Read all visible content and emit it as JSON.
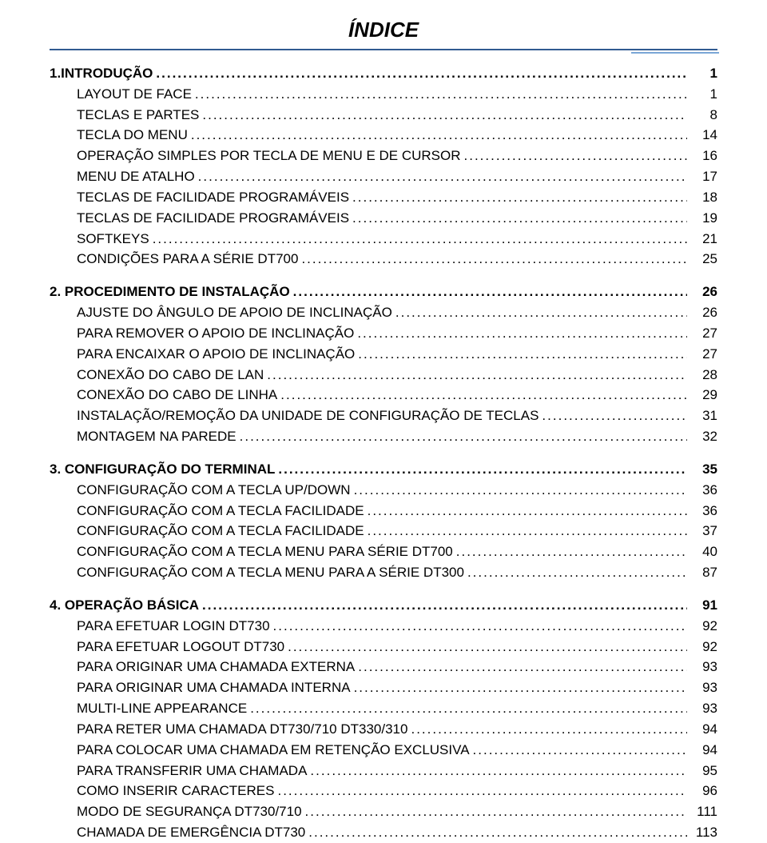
{
  "page": {
    "title": "ÍNDICE",
    "colors": {
      "rule_primary": "#315b91",
      "rule_accent": "#7aa6d6",
      "text": "#000000",
      "background": "#ffffff"
    },
    "typography": {
      "title_fontsize": 26,
      "title_weight": "bold",
      "title_style": "italic",
      "body_fontsize": 17,
      "line_height": 1.52,
      "font_family": "Arial"
    }
  },
  "items": [
    {
      "level": 1,
      "label": "1.INTRODUÇÃO",
      "page": "1"
    },
    {
      "level": 2,
      "label": "LAYOUT DE FACE",
      "page": "1"
    },
    {
      "level": 2,
      "label": "TECLAS E PARTES",
      "page": "8"
    },
    {
      "level": 2,
      "label": "TECLA DO MENU",
      "page": "14"
    },
    {
      "level": 2,
      "label": "OPERAÇÃO SIMPLES POR TECLA DE MENU E  DE  CURSOR",
      "page": "16"
    },
    {
      "level": 2,
      "label": "MENU DE ATALHO",
      "page": "17"
    },
    {
      "level": 2,
      "label": "TECLAS DE FACILIDADE PROGRAMÁVEIS",
      "page": "18"
    },
    {
      "level": 2,
      "label": "TECLAS DE FACILIDADE PROGRAMÁVEIS",
      "page": "19"
    },
    {
      "level": 2,
      "label": "SOFTKEYS",
      "page": "21"
    },
    {
      "level": 2,
      "label": "CONDIÇÕES PARA A SÉRIE DT700",
      "page": "25"
    },
    {
      "gap": true
    },
    {
      "level": 1,
      "label": "2. PROCEDIMENTO DE INSTALAÇÃO",
      "page": "26"
    },
    {
      "level": 2,
      "label": "AJUSTE DO ÂNGULO DE APOIO DE INCLINAÇÃO",
      "page": "26"
    },
    {
      "level": 2,
      "label": "PARA REMOVER O APOIO DE INCLINAÇÃO",
      "page": "27"
    },
    {
      "level": 2,
      "label": "PARA ENCAIXAR O APOIO DE INCLINAÇÃO",
      "page": "27"
    },
    {
      "level": 2,
      "label": "CONEXÃO DO CABO DE LAN",
      "page": "28"
    },
    {
      "level": 2,
      "label": "CONEXÃO DO CABO DE LINHA",
      "page": "29"
    },
    {
      "level": 2,
      "label": "INSTALAÇÃO/REMOÇÃO DA UNIDADE  DE CONFIGURAÇÃO DE TECLAS",
      "page": "31"
    },
    {
      "level": 2,
      "label": "MONTAGEM NA PAREDE",
      "page": "32"
    },
    {
      "gap": true
    },
    {
      "level": 1,
      "label": "3. CONFIGURAÇÃO DO TERMINAL",
      "page": "35"
    },
    {
      "level": 2,
      "label": "CONFIGURAÇÃO COM A TECLA UP/DOWN",
      "page": "36"
    },
    {
      "level": 2,
      "label": "CONFIGURAÇÃO COM A TECLA FACILIDADE",
      "page": "36"
    },
    {
      "level": 2,
      "label": "CONFIGURAÇÃO COM A TECLA FACILIDADE",
      "page": "37"
    },
    {
      "level": 2,
      "label": "CONFIGURAÇÃO COM A TECLA  MENU PARA SÉRIE DT700",
      "page": "40"
    },
    {
      "level": 2,
      "label": "CONFIGURAÇÃO COM A TECLA MENU PARA A SÉRIE DT300",
      "page": "87"
    },
    {
      "gap": true
    },
    {
      "level": 1,
      "label": "4. OPERAÇÃO BÁSICA",
      "page": "91"
    },
    {
      "level": 2,
      "label": "PARA EFETUAR LOGIN DT730",
      "page": "92"
    },
    {
      "level": 2,
      "label": "PARA EFETUAR LOGOUT DT730",
      "page": "92"
    },
    {
      "level": 2,
      "label": "PARA ORIGINAR UMA CHAMADA EXTERNA",
      "page": "93"
    },
    {
      "level": 2,
      "label": "PARA ORIGINAR UMA CHAMADA INTERNA",
      "page": "93"
    },
    {
      "level": 2,
      "label": "MULTI-LINE APPEARANCE",
      "page": "93"
    },
    {
      "level": 2,
      "label": "PARA RETER UMA CHAMADA DT730/710    DT330/310",
      "page": "94"
    },
    {
      "level": 2,
      "label": "PARA COLOCAR UMA CHAMADA EM RETENÇÃO EXCLUSIVA",
      "page": "94"
    },
    {
      "level": 2,
      "label": "PARA TRANSFERIR UMA CHAMADA",
      "page": "95"
    },
    {
      "level": 2,
      "label": "COMO INSERIR CARACTERES",
      "page": "96"
    },
    {
      "level": 2,
      "label": "MODO DE SEGURANÇA DT730/710",
      "page": "111"
    },
    {
      "level": 2,
      "label": "CHAMADA DE EMERGÊNCIA DT730",
      "page": "113"
    }
  ]
}
